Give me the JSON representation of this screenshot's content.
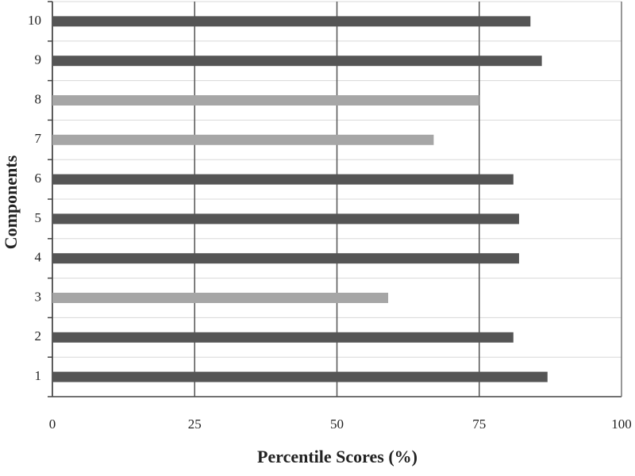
{
  "chart_data": {
    "type": "bar",
    "orientation": "horizontal",
    "categories": [
      "1",
      "2",
      "3",
      "4",
      "5",
      "6",
      "7",
      "8",
      "9",
      "10"
    ],
    "values": [
      87,
      81,
      59,
      82,
      82,
      81,
      67,
      75,
      86,
      84
    ],
    "colors": [
      "#555555",
      "#555555",
      "#a6a6a6",
      "#555555",
      "#555555",
      "#555555",
      "#a6a6a6",
      "#a6a6a6",
      "#555555",
      "#555555"
    ],
    "xlabel": "Percentile Scores (%)",
    "ylabel": "Components",
    "xlim": [
      0,
      100
    ],
    "xticks": [
      0,
      25,
      50,
      75,
      100
    ],
    "grid": true
  }
}
